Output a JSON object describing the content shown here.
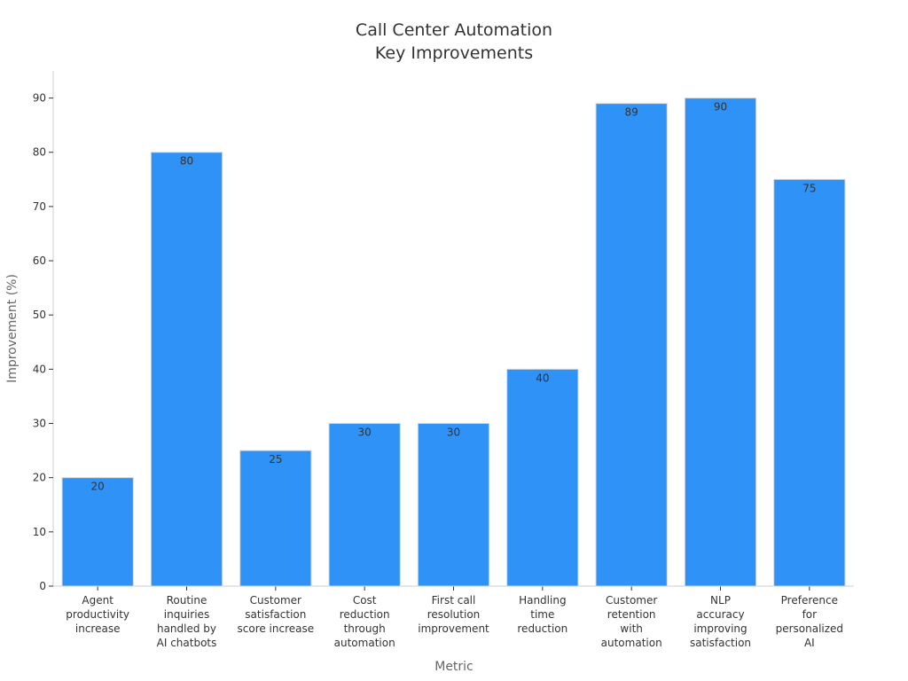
{
  "chart_data": {
    "type": "bar",
    "title": [
      "Call Center Automation",
      "Key Improvements"
    ],
    "xlabel": "Metric",
    "ylabel": "Improvement (%)",
    "ylim": [
      0,
      95
    ],
    "yticks": [
      0,
      10,
      20,
      30,
      40,
      50,
      60,
      70,
      80,
      90
    ],
    "grid": false,
    "bar_color": "#2f92f7",
    "categories": [
      [
        "Agent",
        "productivity",
        "increase"
      ],
      [
        "Routine",
        "inquiries",
        "handled by",
        "AI chatbots"
      ],
      [
        "Customer",
        "satisfaction",
        "score increase"
      ],
      [
        "Cost",
        "reduction",
        "through",
        "automation"
      ],
      [
        "First call",
        "resolution",
        "improvement"
      ],
      [
        "Handling",
        "time",
        "reduction"
      ],
      [
        "Customer",
        "retention",
        "with",
        "automation"
      ],
      [
        "NLP",
        "accuracy",
        "improving",
        "satisfaction"
      ],
      [
        "Preference",
        "for",
        "personalized",
        "AI"
      ]
    ],
    "values": [
      20,
      80,
      25,
      30,
      30,
      40,
      89,
      90,
      75
    ]
  }
}
